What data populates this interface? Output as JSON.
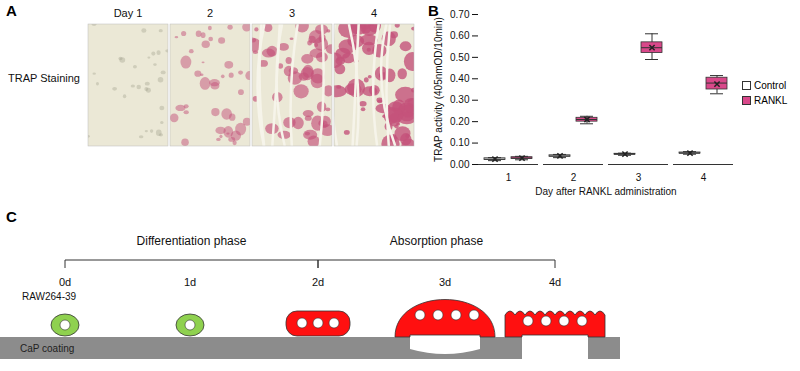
{
  "panel_labels": [
    "A",
    "B",
    "C"
  ],
  "panel_a": {
    "row_label": "TRAP Staining",
    "columns": [
      "Day 1",
      "2",
      "3",
      "4"
    ]
  },
  "chart_data": {
    "type": "box",
    "x_label": "Day after RANKL administration",
    "y_label": "TRAP activity (405nmOD/10min)",
    "categories": [
      1,
      2,
      3,
      4
    ],
    "ylim": [
      0,
      0.7
    ],
    "yticks": [
      0,
      0.1,
      0.2,
      0.3,
      0.4,
      0.5,
      0.6,
      0.7
    ],
    "grid": false,
    "legend": "right",
    "marker": "x",
    "series": [
      {
        "name": "Control",
        "color": "#ffffff",
        "min": [
          0.018,
          0.032,
          0.043,
          0.048
        ],
        "q1": [
          0.021,
          0.036,
          0.046,
          0.051
        ],
        "median": [
          0.025,
          0.04,
          0.048,
          0.053
        ],
        "q3": [
          0.029,
          0.043,
          0.05,
          0.056
        ],
        "max": [
          0.032,
          0.047,
          0.053,
          0.06
        ],
        "mean": [
          0.025,
          0.04,
          0.048,
          0.053
        ]
      },
      {
        "name": "RANKL",
        "color": "#d9488a",
        "min": [
          0.022,
          0.19,
          0.49,
          0.33
        ],
        "q1": [
          0.026,
          0.2,
          0.52,
          0.35
        ],
        "median": [
          0.03,
          0.21,
          0.545,
          0.38
        ],
        "q3": [
          0.034,
          0.218,
          0.57,
          0.405
        ],
        "max": [
          0.038,
          0.225,
          0.61,
          0.415
        ],
        "mean": [
          0.03,
          0.21,
          0.545,
          0.375
        ]
      }
    ]
  },
  "panel_c": {
    "phases": [
      "Differentiation phase",
      "Absorption phase"
    ],
    "days": [
      "0d",
      "1d",
      "2d",
      "3d",
      "4d"
    ],
    "cell_line": "RAW264-39",
    "substrate": "CaP coating"
  }
}
